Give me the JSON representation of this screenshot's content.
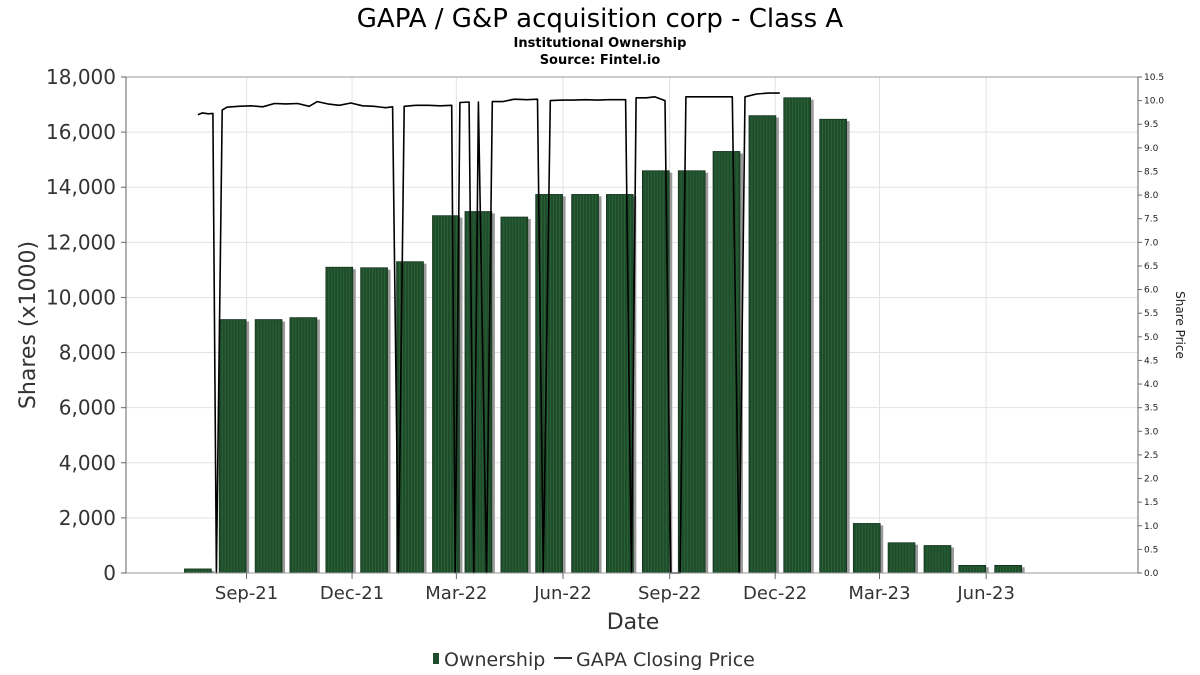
{
  "title": "GAPA / G&P acquisition corp - Class A",
  "subtitle_1": "Institutional Ownership",
  "subtitle_2": "Source: Fintel.io",
  "chart_data": {
    "type": "bar",
    "xlabel": "Date",
    "ylabel": "Shares (x1000)",
    "y2label": "Share Price",
    "x_tick_labels": [
      "Sep-21",
      "Dec-21",
      "Mar-22",
      "Jun-22",
      "Sep-22",
      "Dec-22",
      "Mar-23",
      "Jun-23"
    ],
    "y_ticks": [
      "0",
      "2,000",
      "4,000",
      "6,000",
      "8,000",
      "10,000",
      "12,000",
      "14,000",
      "16,000",
      "18,000"
    ],
    "y2_ticks": [
      "0.0",
      "0.5",
      "1.0",
      "1.5",
      "2.0",
      "2.5",
      "3.0",
      "3.5",
      "4.0",
      "4.5",
      "5.0",
      "5.5",
      "6.0",
      "6.5",
      "7.0",
      "7.5",
      "8.0",
      "8.5",
      "9.0",
      "9.5",
      "10.0",
      "10.5"
    ],
    "ylim": [
      0,
      18000
    ],
    "y2lim": [
      0,
      10.5
    ],
    "grid": true,
    "legend_position": "bottom",
    "series": [
      {
        "name": "Ownership",
        "type": "bar",
        "color": "#1f4d2b",
        "points": [
          {
            "date": "2021-07-21",
            "value": 150
          },
          {
            "date": "2021-08-20",
            "value": 9200
          },
          {
            "date": "2021-09-20",
            "value": 9200
          },
          {
            "date": "2021-10-20",
            "value": 9270
          },
          {
            "date": "2021-11-20",
            "value": 11100
          },
          {
            "date": "2021-12-20",
            "value": 11080
          },
          {
            "date": "2022-01-20",
            "value": 11300
          },
          {
            "date": "2022-02-20",
            "value": 12970
          },
          {
            "date": "2022-03-20",
            "value": 13120
          },
          {
            "date": "2022-04-20",
            "value": 12920
          },
          {
            "date": "2022-05-20",
            "value": 13740
          },
          {
            "date": "2022-06-20",
            "value": 13740
          },
          {
            "date": "2022-07-20",
            "value": 13740
          },
          {
            "date": "2022-08-20",
            "value": 14600
          },
          {
            "date": "2022-09-20",
            "value": 14600
          },
          {
            "date": "2022-10-20",
            "value": 15300
          },
          {
            "date": "2022-11-20",
            "value": 16600
          },
          {
            "date": "2022-12-20",
            "value": 17250
          },
          {
            "date": "2023-01-20",
            "value": 16470
          },
          {
            "date": "2023-02-18",
            "value": 1800
          },
          {
            "date": "2023-03-20",
            "value": 1100
          },
          {
            "date": "2023-04-20",
            "value": 1000
          },
          {
            "date": "2023-05-20",
            "value": 280
          },
          {
            "date": "2023-06-20",
            "value": 280
          }
        ]
      },
      {
        "name": "GAPA Closing Price",
        "type": "line",
        "color": "#000000",
        "points": [
          {
            "date": "2021-07-21",
            "price": 9.7
          },
          {
            "date": "2021-07-25",
            "price": 9.74
          },
          {
            "date": "2021-07-30",
            "price": 9.72
          },
          {
            "date": "2021-08-03",
            "price": 9.73
          },
          {
            "date": "2021-08-06",
            "price": 0.0
          },
          {
            "date": "2021-08-11",
            "price": 9.8
          },
          {
            "date": "2021-08-15",
            "price": 9.86
          },
          {
            "date": "2021-08-25",
            "price": 9.88
          },
          {
            "date": "2021-09-05",
            "price": 9.89
          },
          {
            "date": "2021-09-15",
            "price": 9.87
          },
          {
            "date": "2021-09-25",
            "price": 9.94
          },
          {
            "date": "2021-10-05",
            "price": 9.93
          },
          {
            "date": "2021-10-15",
            "price": 9.94
          },
          {
            "date": "2021-10-25",
            "price": 9.88
          },
          {
            "date": "2021-11-01",
            "price": 9.98
          },
          {
            "date": "2021-11-10",
            "price": 9.93
          },
          {
            "date": "2021-11-20",
            "price": 9.9
          },
          {
            "date": "2021-11-30",
            "price": 9.95
          },
          {
            "date": "2021-12-10",
            "price": 9.89
          },
          {
            "date": "2021-12-20",
            "price": 9.88
          },
          {
            "date": "2021-12-30",
            "price": 9.85
          },
          {
            "date": "2022-01-05",
            "price": 9.87
          },
          {
            "date": "2022-01-10",
            "price": 0.0
          },
          {
            "date": "2022-01-15",
            "price": 9.88
          },
          {
            "date": "2022-01-25",
            "price": 9.9
          },
          {
            "date": "2022-02-05",
            "price": 9.9
          },
          {
            "date": "2022-02-15",
            "price": 9.89
          },
          {
            "date": "2022-02-25",
            "price": 9.9
          },
          {
            "date": "2022-02-28",
            "price": 0.0
          },
          {
            "date": "2022-03-04",
            "price": 9.96
          },
          {
            "date": "2022-03-12",
            "price": 9.97
          },
          {
            "date": "2022-03-16",
            "price": 0.0
          },
          {
            "date": "2022-03-20",
            "price": 9.97
          },
          {
            "date": "2022-03-27",
            "price": 0.0
          },
          {
            "date": "2022-04-01",
            "price": 9.98
          },
          {
            "date": "2022-04-10",
            "price": 9.98
          },
          {
            "date": "2022-04-20",
            "price": 10.03
          },
          {
            "date": "2022-05-01",
            "price": 10.02
          },
          {
            "date": "2022-05-10",
            "price": 10.03
          },
          {
            "date": "2022-05-15",
            "price": 0.0
          },
          {
            "date": "2022-05-21",
            "price": 10.0
          },
          {
            "date": "2022-06-01",
            "price": 10.01
          },
          {
            "date": "2022-06-10",
            "price": 10.01
          },
          {
            "date": "2022-06-20",
            "price": 10.02
          },
          {
            "date": "2022-07-01",
            "price": 10.01
          },
          {
            "date": "2022-07-10",
            "price": 10.02
          },
          {
            "date": "2022-07-20",
            "price": 10.02
          },
          {
            "date": "2022-07-25",
            "price": 10.02
          },
          {
            "date": "2022-07-30",
            "price": 0.0
          },
          {
            "date": "2022-08-03",
            "price": 10.06
          },
          {
            "date": "2022-08-12",
            "price": 10.06
          },
          {
            "date": "2022-08-19",
            "price": 10.08
          },
          {
            "date": "2022-08-28",
            "price": 10.0
          },
          {
            "date": "2022-09-02",
            "price": 0.0
          },
          {
            "date": "2022-09-10",
            "price": 0.0
          },
          {
            "date": "2022-09-15",
            "price": 10.08
          },
          {
            "date": "2022-10-01",
            "price": 10.08
          },
          {
            "date": "2022-10-15",
            "price": 10.08
          },
          {
            "date": "2022-10-25",
            "price": 10.08
          },
          {
            "date": "2022-10-31",
            "price": 0.0
          },
          {
            "date": "2022-11-05",
            "price": 10.08
          },
          {
            "date": "2022-11-15",
            "price": 10.14
          },
          {
            "date": "2022-11-25",
            "price": 10.16
          },
          {
            "date": "2022-12-05",
            "price": 10.16
          }
        ]
      }
    ]
  },
  "legend": {
    "ownership_label": "Ownership",
    "price_label": "GAPA Closing Price"
  }
}
